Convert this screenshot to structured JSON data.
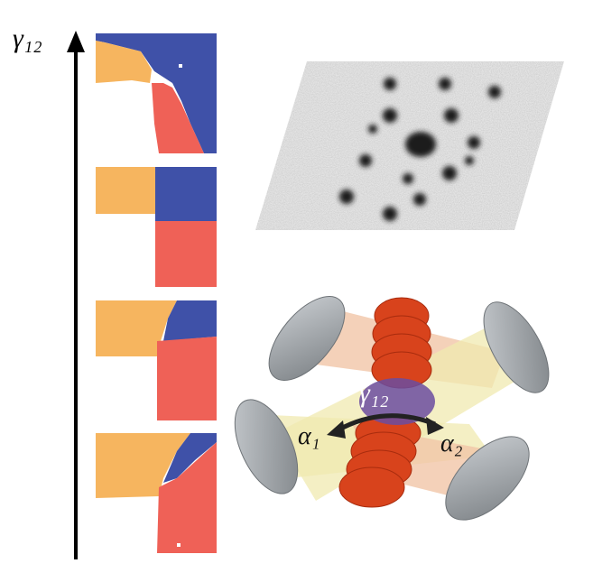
{
  "axis": {
    "label": "γ₁₂"
  },
  "setup": {
    "labels": [
      "γ₁₂",
      "α₁",
      "α₂"
    ]
  }
}
